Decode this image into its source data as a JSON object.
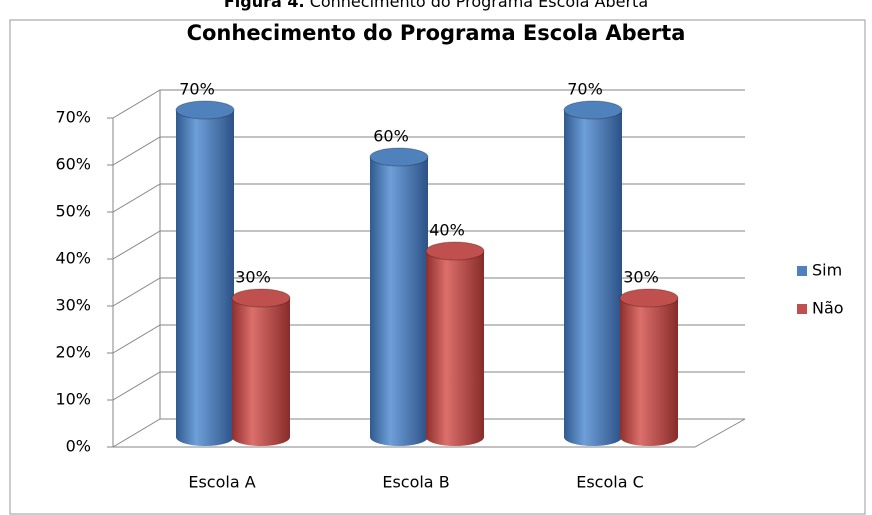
{
  "chart_data": {
    "type": "bar",
    "caption_label": "Figura 4.",
    "caption": "Conhecimento do Programa Escola Aberta",
    "title": "Conhecimento do Programa Escola Aberta",
    "categories": [
      "Escola A",
      "Escola B",
      "Escola C"
    ],
    "series": [
      {
        "name": "Sim",
        "color": "#4F81BD",
        "values": [
          70,
          60,
          70
        ],
        "value_labels": [
          "70%",
          "60%",
          "70%"
        ]
      },
      {
        "name": "Não",
        "color": "#C0504D",
        "values": [
          30,
          40,
          30
        ],
        "value_labels": [
          "30%",
          "40%",
          "30%"
        ]
      }
    ],
    "ylim": [
      0,
      70
    ],
    "yticks": [
      {
        "value": 0,
        "label": "0%"
      },
      {
        "value": 10,
        "label": "10%"
      },
      {
        "value": 20,
        "label": "20%"
      },
      {
        "value": 30,
        "label": "30%"
      },
      {
        "value": 40,
        "label": "40%"
      },
      {
        "value": 50,
        "label": "50%"
      },
      {
        "value": 60,
        "label": "60%"
      },
      {
        "value": 70,
        "label": "70%"
      }
    ],
    "grid": true,
    "legend": "right"
  }
}
